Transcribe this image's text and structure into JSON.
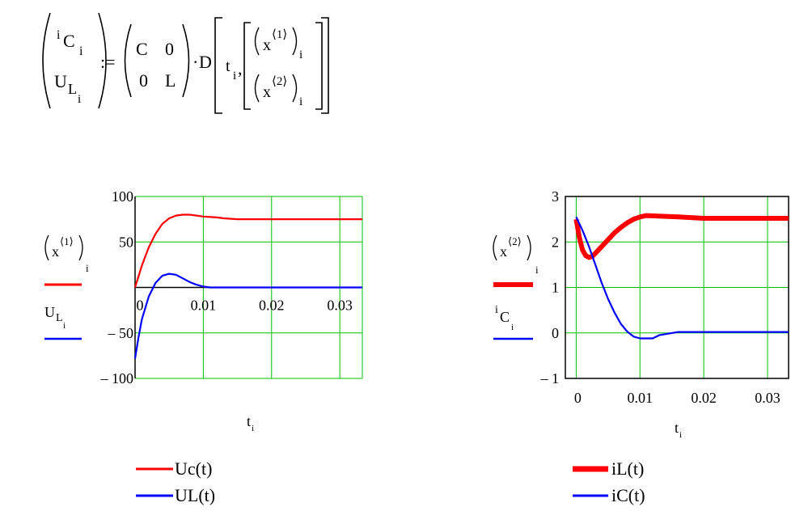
{
  "formula": {
    "lhs": [
      {
        "base": "i",
        "sub1": "C",
        "sub2": "i"
      },
      {
        "base": "U",
        "sub1": "L",
        "sub2": "i"
      }
    ],
    "assign": ":=",
    "matrix": [
      [
        "C",
        "0"
      ],
      [
        "0",
        "L"
      ]
    ],
    "dot": "·",
    "func": "D",
    "arg": {
      "base": "t",
      "sub": "i",
      "comma": ","
    },
    "vector": [
      {
        "base": "x",
        "sup": "⟨1⟩",
        "sub": "i"
      },
      {
        "base": "x",
        "sup": "⟨2⟩",
        "sub": "i"
      }
    ]
  },
  "left_plot": {
    "ylabels": [
      {
        "base": "x",
        "sup": "⟨1⟩",
        "sub": "i"
      },
      {
        "base": "U",
        "sub1": "L",
        "sub2": "i"
      }
    ],
    "xlabel": {
      "base": "t",
      "sub": "i"
    },
    "legend": [
      {
        "label": "Uc(t)",
        "color": "#ff0000"
      },
      {
        "label": "UL(t)",
        "color": "#0000ff"
      }
    ]
  },
  "right_plot": {
    "ylabels": [
      {
        "base": "x",
        "sup": "⟨2⟩",
        "sub": "i"
      },
      {
        "base": "i",
        "sub1": "C",
        "sub2": "i"
      }
    ],
    "xlabel": {
      "base": "t",
      "sub": "i"
    },
    "legend": [
      {
        "label": "iL(t)",
        "color": "#ff0000"
      },
      {
        "label": "iC(t)",
        "color": "#0000ff"
      }
    ]
  },
  "chart_data": [
    {
      "type": "line",
      "xlim": [
        0,
        0.0333
      ],
      "ylim": [
        -100,
        100
      ],
      "xticks": [
        "0",
        "0.01",
        "0.02",
        "0.03"
      ],
      "xtick_values": [
        0,
        0.01,
        0.02,
        0.03
      ],
      "yticks": [
        "100",
        "50",
        "– 50",
        "– 100"
      ],
      "ytick_values": [
        100,
        50,
        -50,
        -100
      ],
      "grid": true,
      "axes_through_zero": true,
      "series": [
        {
          "color": "#ff0000",
          "x": [
            0,
            0.001,
            0.002,
            0.003,
            0.004,
            0.005,
            0.006,
            0.007,
            0.008,
            0.009,
            0.01,
            0.012,
            0.013,
            0.015,
            0.02,
            0.025,
            0.03,
            0.0333
          ],
          "y": [
            0,
            24,
            44,
            59,
            70,
            76,
            79,
            80,
            80,
            79,
            78,
            77,
            76,
            75,
            75,
            75,
            75,
            75
          ]
        },
        {
          "color": "#0000ff",
          "x": [
            0,
            0.0005,
            0.001,
            0.002,
            0.003,
            0.004,
            0.005,
            0.006,
            0.007,
            0.008,
            0.009,
            0.01,
            0.011,
            0.012,
            0.015,
            0.02,
            0.03,
            0.0333
          ],
          "y": [
            -78,
            -55,
            -35,
            -10,
            5,
            13,
            15,
            14,
            10,
            6,
            3,
            1,
            0,
            0,
            0,
            0,
            0,
            0
          ]
        }
      ]
    },
    {
      "type": "line",
      "xlim": [
        -0.0017,
        0.0333
      ],
      "ylim": [
        -1,
        3
      ],
      "xticks": [
        "0",
        "0.01",
        "0.02",
        "0.03"
      ],
      "xtick_values": [
        0,
        0.01,
        0.02,
        0.03
      ],
      "yticks": [
        "3",
        "2",
        "1",
        "0",
        "– 1"
      ],
      "ytick_values": [
        3,
        2,
        1,
        0,
        -1
      ],
      "grid": true,
      "axes_through_zero": false,
      "series": [
        {
          "color": "#ff0000",
          "x": [
            0,
            0.0005,
            0.001,
            0.0015,
            0.002,
            0.0025,
            0.003,
            0.004,
            0.005,
            0.006,
            0.007,
            0.008,
            0.009,
            0.01,
            0.011,
            0.016,
            0.02,
            0.03,
            0.0333
          ],
          "y": [
            2.5,
            2.1,
            1.82,
            1.7,
            1.66,
            1.68,
            1.75,
            1.9,
            2.05,
            2.2,
            2.32,
            2.42,
            2.5,
            2.55,
            2.58,
            2.55,
            2.52,
            2.52,
            2.52
          ]
        },
        {
          "color": "#0000ff",
          "x": [
            0,
            0.001,
            0.002,
            0.003,
            0.004,
            0.005,
            0.006,
            0.007,
            0.008,
            0.009,
            0.01,
            0.012,
            0.013,
            0.016,
            0.02,
            0.03,
            0.0333
          ],
          "y": [
            2.55,
            2.25,
            1.9,
            1.5,
            1.1,
            0.75,
            0.45,
            0.2,
            0.03,
            -0.08,
            -0.12,
            -0.12,
            -0.05,
            0.02,
            0.02,
            0.02,
            0.02
          ]
        }
      ]
    }
  ]
}
